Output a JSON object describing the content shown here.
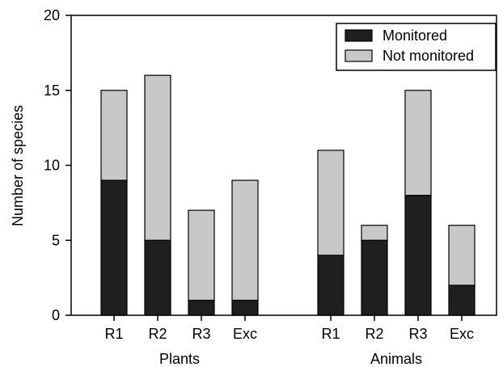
{
  "chart_data": {
    "type": "bar",
    "stacked": true,
    "ylabel": "Number of species",
    "ylim": [
      0,
      20
    ],
    "yticks": [
      0,
      5,
      10,
      15,
      20
    ],
    "groups": [
      {
        "label": "Plants",
        "categories": [
          "R1",
          "R2",
          "R3",
          "Exc"
        ]
      },
      {
        "label": "Animals",
        "categories": [
          "R1",
          "R2",
          "R3",
          "Exc"
        ]
      }
    ],
    "series": [
      {
        "name": "Monitored",
        "color": "#1f1f1f",
        "values": [
          9,
          5,
          1,
          1,
          4,
          5,
          8,
          2
        ]
      },
      {
        "name": "Not monitored",
        "color": "#c8c8c8",
        "values": [
          6,
          11,
          6,
          8,
          7,
          1,
          7,
          4
        ]
      }
    ],
    "legend": {
      "position": "top-right"
    },
    "grid": false
  }
}
